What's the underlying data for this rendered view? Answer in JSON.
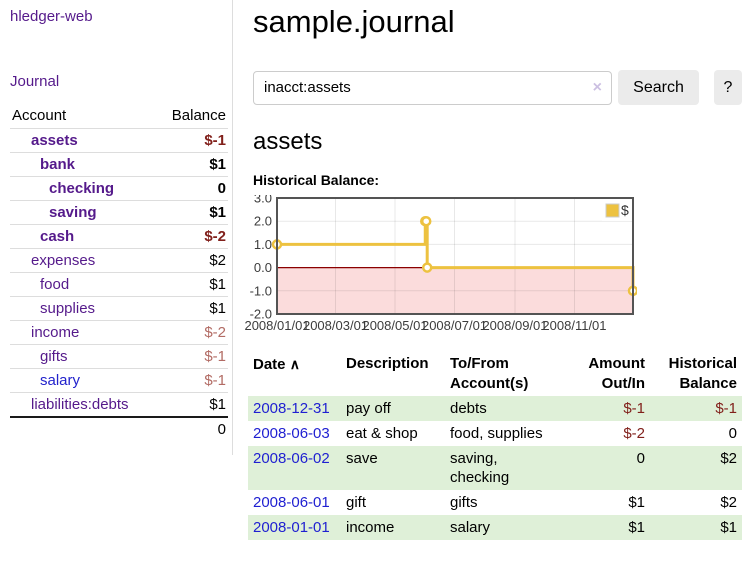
{
  "brand": {
    "label": "hledger-web"
  },
  "nav": {
    "journal": "Journal"
  },
  "sidebar": {
    "account_header": "Account",
    "balance_header": "Balance",
    "accounts": [
      {
        "name": "assets",
        "indent": 0,
        "balance": "$-1",
        "bold": true,
        "neg": "dark"
      },
      {
        "name": "bank",
        "indent": 1,
        "balance": "$1",
        "bold": true,
        "neg": "none"
      },
      {
        "name": "checking",
        "indent": 2,
        "balance": "0",
        "bold": true,
        "neg": "none"
      },
      {
        "name": "saving",
        "indent": 2,
        "balance": "$1",
        "bold": true,
        "neg": "none"
      },
      {
        "name": "cash",
        "indent": 1,
        "balance": "$-2",
        "bold": true,
        "neg": "dark"
      },
      {
        "name": "expenses",
        "indent": 0,
        "balance": "$2",
        "bold": false,
        "neg": "none"
      },
      {
        "name": "food",
        "indent": 1,
        "balance": "$1",
        "bold": false,
        "neg": "none"
      },
      {
        "name": "supplies",
        "indent": 1,
        "balance": "$1",
        "bold": false,
        "neg": "none"
      },
      {
        "name": "income",
        "indent": 0,
        "balance": "$-2",
        "bold": false,
        "neg": "muted"
      },
      {
        "name": "gifts",
        "indent": 1,
        "balance": "$-1",
        "bold": false,
        "neg": "muted"
      },
      {
        "name": "salary",
        "indent": 1,
        "balance": "$-1",
        "bold": false,
        "neg": "muted",
        "blue_link": true
      },
      {
        "name": "liabilities:debts",
        "indent": 0,
        "balance": "$1",
        "bold": false,
        "neg": "none"
      }
    ],
    "total": "0"
  },
  "main": {
    "title": "sample.journal",
    "search": {
      "value": "inacct:assets",
      "clear_icon": "×",
      "search_button": "Search",
      "help_button": "?"
    },
    "account_title": "assets",
    "chart_label": "Historical Balance:"
  },
  "chart_data": {
    "type": "line",
    "title": "Historical Balance",
    "steps": true,
    "marker": "open-circle",
    "series": [
      {
        "name": "$",
        "color": "#edc240",
        "x": [
          "2008-01-01",
          "2008-06-01",
          "2008-06-02",
          "2008-06-03",
          "2008-12-31"
        ],
        "values": [
          1,
          2,
          2,
          0,
          -1
        ]
      }
    ],
    "x_range": [
      "2008-01-01",
      "2008-12-31"
    ],
    "ylim": [
      -2,
      3
    ],
    "yticks": [
      "3.0",
      "2.0",
      "1.0",
      "0.0",
      "-1.0",
      "-2.0"
    ],
    "ytick_values": [
      3,
      2,
      1,
      0,
      -1,
      -2
    ],
    "xticks": [
      "2008/01/01",
      "2008/03/01",
      "2008/05/01",
      "2008/07/01",
      "2008/09/01",
      "2008/11/01"
    ],
    "xtick_dates": [
      "2008-01-01",
      "2008-03-01",
      "2008-05-01",
      "2008-07-01",
      "2008-09-01",
      "2008-11-01"
    ],
    "grid": true,
    "legend": "$",
    "legend_position": "top-right",
    "zero_line_color": "#8b0000",
    "negative_area_color": "#fbdcdc",
    "border_color": "#545454",
    "grid_color": "rgba(0,0,0,0.09)"
  },
  "register": {
    "headers": {
      "date": "Date",
      "sort_icon": "∧",
      "description": "Description",
      "accounts_line1": "To/From",
      "accounts_line2": "Account(s)",
      "amount_line1": "Amount",
      "amount_line2": "Out/In",
      "balance_line1": "Historical",
      "balance_line2": "Balance"
    },
    "rows": [
      {
        "date": "2008-12-31",
        "description": "pay off",
        "accounts": [
          "debts"
        ],
        "amount": "$-1",
        "amount_neg": true,
        "balance": "$-1",
        "balance_neg": true,
        "shaded": true
      },
      {
        "date": "2008-06-03",
        "description": "eat & shop",
        "accounts": [
          "food, supplies"
        ],
        "amount": "$-2",
        "amount_neg": true,
        "balance": "0",
        "balance_neg": false,
        "shaded": false
      },
      {
        "date": "2008-06-02",
        "description": "save",
        "accounts": [
          "saving,",
          "checking"
        ],
        "amount": "0",
        "amount_neg": false,
        "balance": "$2",
        "balance_neg": false,
        "shaded": true
      },
      {
        "date": "2008-06-01",
        "description": "gift",
        "accounts": [
          "gifts"
        ],
        "amount": "$1",
        "amount_neg": false,
        "balance": "$2",
        "balance_neg": false,
        "shaded": false
      },
      {
        "date": "2008-01-01",
        "description": "income",
        "accounts": [
          "salary"
        ],
        "amount": "$1",
        "amount_neg": false,
        "balance": "$1",
        "balance_neg": false,
        "shaded": true
      }
    ]
  },
  "colors": {
    "accent_gold": "#edc240",
    "link_purple": "#551a8b",
    "link_blue": "#1f1fd1",
    "negative": "#81201b",
    "negative_muted": "#b26b64",
    "row_shade": "#dff0d8"
  }
}
